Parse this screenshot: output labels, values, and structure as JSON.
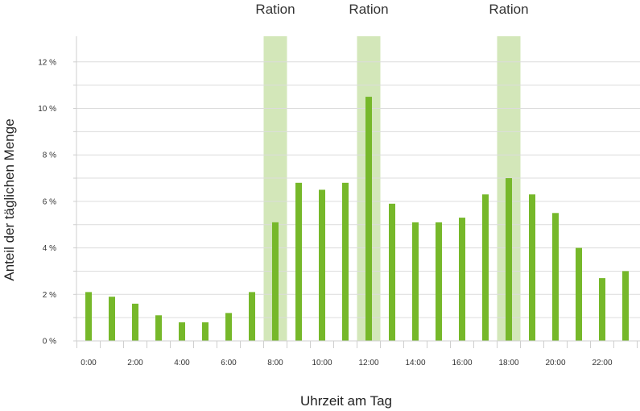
{
  "chart_data": {
    "type": "bar",
    "title": "",
    "xlabel": "Uhrzeit am Tag",
    "ylabel": "Anteil der täglichen Menge",
    "x_tick_labels": [
      "0:00",
      "2:00",
      "4:00",
      "6:00",
      "8:00",
      "10:00",
      "12:00",
      "14:00",
      "16:00",
      "18:00",
      "20:00",
      "22:00"
    ],
    "y_tick_labels": [
      "0 %",
      "2 %",
      "4 %",
      "6 %",
      "8 %",
      "10 %",
      "12 %"
    ],
    "ylim": [
      0,
      12
    ],
    "grid": true,
    "hours": [
      0,
      1,
      2,
      3,
      4,
      5,
      6,
      7,
      8,
      9,
      10,
      11,
      12,
      13,
      14,
      15,
      16,
      17,
      18,
      19,
      20,
      21,
      22,
      23
    ],
    "values": [
      2.1,
      1.9,
      1.6,
      1.1,
      0.8,
      0.8,
      1.2,
      2.1,
      5.1,
      6.8,
      6.5,
      6.8,
      10.5,
      5.9,
      5.1,
      5.1,
      5.3,
      6.3,
      7.0,
      6.3,
      5.5,
      4.0,
      2.7,
      3.0
    ],
    "highlights": [
      {
        "label": "Ration",
        "hour": 8
      },
      {
        "label": "Ration",
        "hour": 12
      },
      {
        "label": "Ration",
        "hour": 18
      }
    ],
    "colors": {
      "bar": "#76b82a",
      "highlight": "#d3e7b9",
      "grid": "#dcdcdc"
    }
  }
}
